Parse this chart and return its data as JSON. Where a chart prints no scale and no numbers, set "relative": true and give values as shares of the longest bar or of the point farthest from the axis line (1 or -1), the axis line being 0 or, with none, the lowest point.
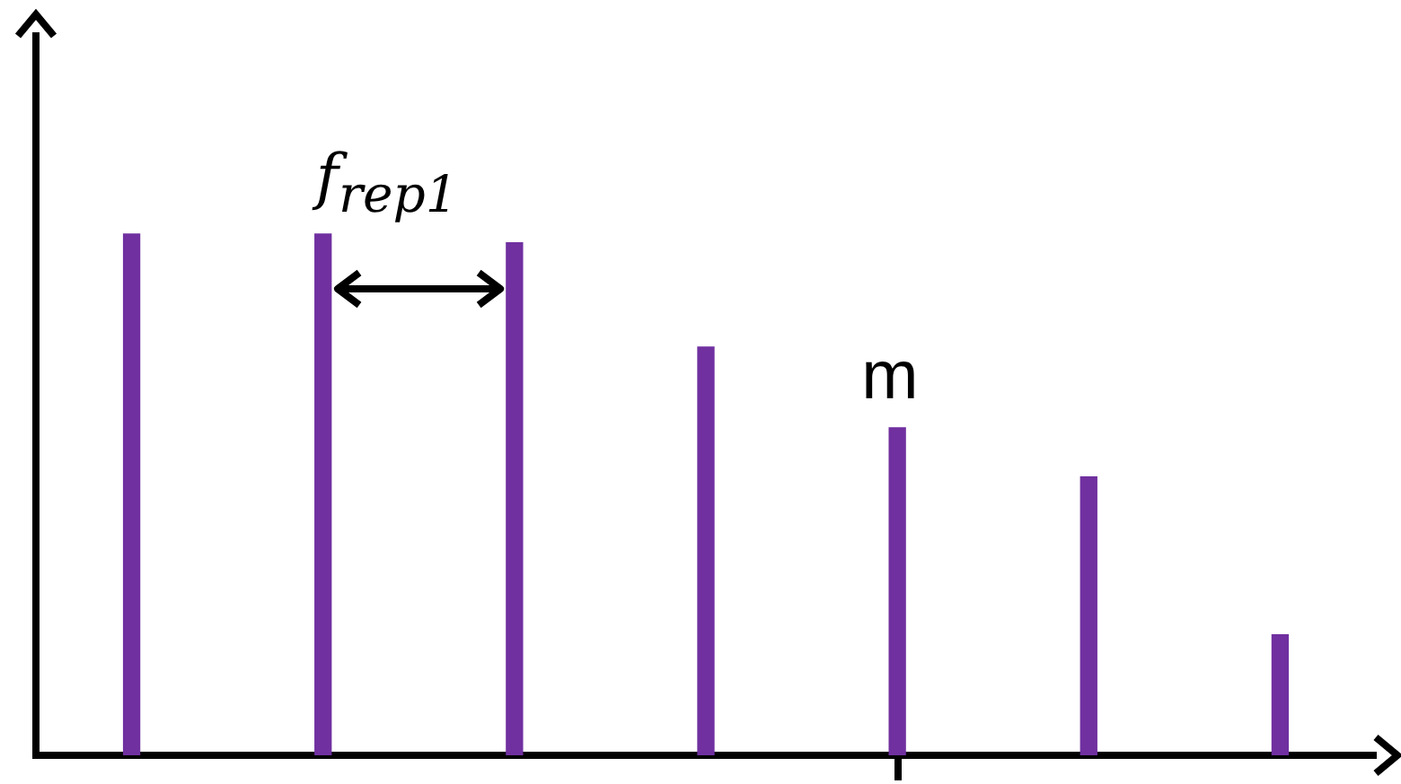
{
  "chart_data": {
    "type": "bar",
    "relative": true,
    "categories": [
      null,
      null,
      null,
      null,
      null,
      null,
      null
    ],
    "values": [
      1,
      1,
      0.983,
      0.783,
      0.628,
      0.534,
      0.231
    ],
    "color": "#7030a0",
    "grid": false,
    "legend": false,
    "tick_labels": false,
    "annotations": [
      "f$_{rep1}$",
      "m"
    ]
  }
}
